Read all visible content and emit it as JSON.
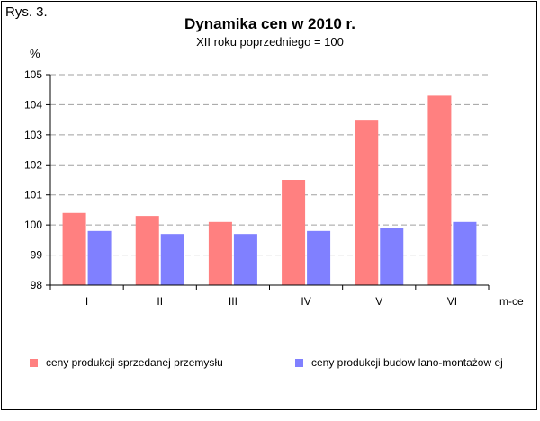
{
  "figure_label": "Rys. 3.",
  "colors": {
    "series_1": "#ff8080",
    "series_2": "#8080ff",
    "grid": "#a0a0a0",
    "axis": "#000000"
  },
  "chart_data": {
    "type": "bar",
    "title": "Dynamika cen w 2010 r.",
    "subtitle": "XII roku poprzedniego = 100",
    "ylabel": "%",
    "xlabel": "m-ce",
    "categories": [
      "I",
      "II",
      "III",
      "IV",
      "V",
      "VI"
    ],
    "ylim": [
      98,
      105
    ],
    "yticks": [
      98,
      99,
      100,
      101,
      102,
      103,
      104,
      105
    ],
    "grid": true,
    "legend_position": "bottom",
    "series": [
      {
        "name": "ceny produkcji sprzedanej przemysłu",
        "values": [
          100.4,
          100.3,
          100.1,
          101.5,
          103.5,
          104.3
        ]
      },
      {
        "name": "ceny produkcji budow lano-montażow ej",
        "values": [
          99.8,
          99.7,
          99.7,
          99.8,
          99.9,
          100.1
        ]
      }
    ]
  }
}
